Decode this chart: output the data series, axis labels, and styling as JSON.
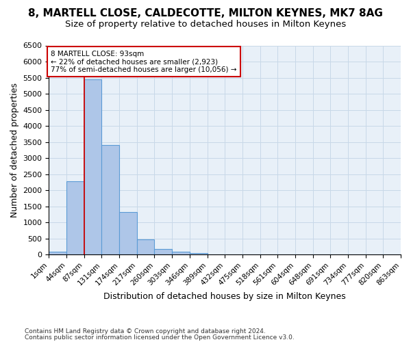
{
  "title_line1": "8, MARTELL CLOSE, CALDECOTTE, MILTON KEYNES, MK7 8AG",
  "title_line2": "Size of property relative to detached houses in Milton Keynes",
  "xlabel": "Distribution of detached houses by size in Milton Keynes",
  "ylabel": "Number of detached properties",
  "footer_line1": "Contains HM Land Registry data © Crown copyright and database right 2024.",
  "footer_line2": "Contains public sector information licensed under the Open Government Licence v3.0.",
  "bin_labels": [
    "1sqm",
    "44sqm",
    "87sqm",
    "131sqm",
    "174sqm",
    "217sqm",
    "260sqm",
    "303sqm",
    "346sqm",
    "389sqm",
    "432sqm",
    "475sqm",
    "518sqm",
    "561sqm",
    "604sqm",
    "648sqm",
    "691sqm",
    "734sqm",
    "777sqm",
    "820sqm",
    "863sqm"
  ],
  "bar_values": [
    80,
    2280,
    5450,
    3400,
    1310,
    480,
    165,
    80,
    50,
    0,
    0,
    0,
    0,
    0,
    0,
    0,
    0,
    0,
    0,
    0
  ],
  "bar_color": "#aec6e8",
  "bar_edge_color": "#5b9bd5",
  "ylim_max": 6500,
  "yticks": [
    0,
    500,
    1000,
    1500,
    2000,
    2500,
    3000,
    3500,
    4000,
    4500,
    5000,
    5500,
    6000,
    6500
  ],
  "property_bin_index": 2,
  "annotation_title": "8 MARTELL CLOSE: 93sqm",
  "annotation_line1": "← 22% of detached houses are smaller (2,923)",
  "annotation_line2": "77% of semi-detached houses are larger (10,056) →",
  "vline_color": "#cc0000",
  "annotation_box_edge": "#cc0000",
  "grid_color": "#c8d8e8",
  "bg_color": "#e8f0f8",
  "title_fontsize": 11,
  "subtitle_fontsize": 9.5,
  "axis_label_fontsize": 9,
  "tick_fontsize": 7.5,
  "footer_fontsize": 6.5
}
